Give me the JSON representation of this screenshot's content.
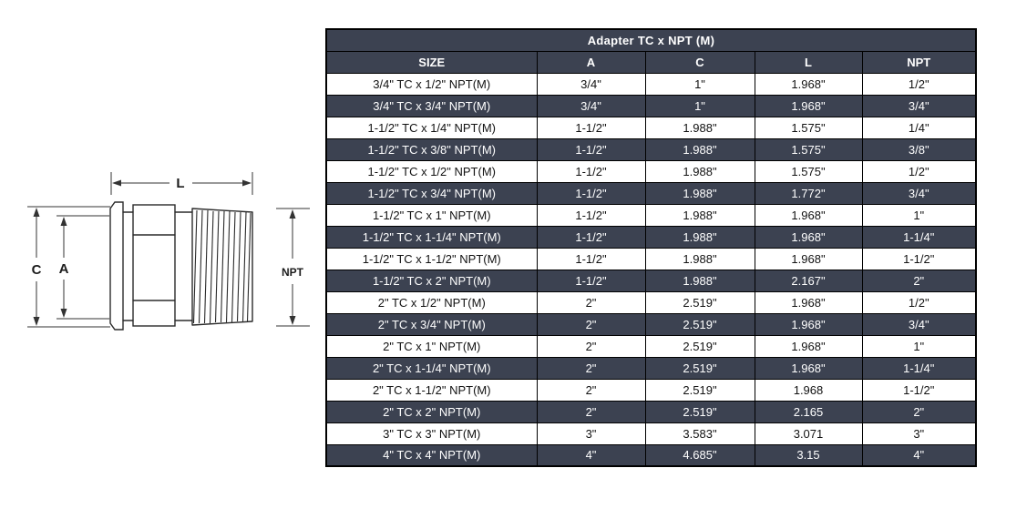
{
  "colors": {
    "header_bg": "#3c4251",
    "alt_row_bg": "#3c4251",
    "row_bg": "#ffffff",
    "border": "#000000",
    "header_text": "#ffffff",
    "body_text": "#121212",
    "drawing_line": "#2b2b2b"
  },
  "diagram": {
    "labels": {
      "length": "L",
      "clamp_diameter": "C",
      "tube_diameter": "A",
      "thread": "NPT"
    }
  },
  "table": {
    "title": "Adapter TC x NPT (M)",
    "columns": [
      "SIZE",
      "A",
      "C",
      "L",
      "NPT"
    ],
    "rows": [
      [
        "3/4\" TC x 1/2\" NPT(M)",
        "3/4\"",
        "1\"",
        "1.968\"",
        "1/2\""
      ],
      [
        "3/4\" TC x 3/4\" NPT(M)",
        "3/4\"",
        "1\"",
        "1.968\"",
        "3/4\""
      ],
      [
        "1-1/2\" TC x 1/4\" NPT(M)",
        "1-1/2\"",
        "1.988\"",
        "1.575\"",
        "1/4\""
      ],
      [
        "1-1/2\" TC x 3/8\" NPT(M)",
        "1-1/2\"",
        "1.988\"",
        "1.575\"",
        "3/8\""
      ],
      [
        "1-1/2\" TC x 1/2\" NPT(M)",
        "1-1/2\"",
        "1.988\"",
        "1.575\"",
        "1/2\""
      ],
      [
        "1-1/2\" TC x 3/4\" NPT(M)",
        "1-1/2\"",
        "1.988\"",
        "1.772\"",
        "3/4\""
      ],
      [
        "1-1/2\" TC x 1\" NPT(M)",
        "1-1/2\"",
        "1.988\"",
        "1.968\"",
        "1\""
      ],
      [
        "1-1/2\" TC x 1-1/4\" NPT(M)",
        "1-1/2\"",
        "1.988\"",
        "1.968\"",
        "1-1/4\""
      ],
      [
        "1-1/2\" TC x 1-1/2\" NPT(M)",
        "1-1/2\"",
        "1.988\"",
        "1.968\"",
        "1-1/2\""
      ],
      [
        "1-1/2\" TC x 2\" NPT(M)",
        "1-1/2\"",
        "1.988\"",
        "2.167\"",
        "2\""
      ],
      [
        "2\" TC x 1/2\" NPT(M)",
        "2\"",
        "2.519\"",
        "1.968\"",
        "1/2\""
      ],
      [
        "2\" TC x 3/4\" NPT(M)",
        "2\"",
        "2.519\"",
        "1.968\"",
        "3/4\""
      ],
      [
        "2\" TC x 1\" NPT(M)",
        "2\"",
        "2.519\"",
        "1.968\"",
        "1\""
      ],
      [
        "2\" TC x 1-1/4\" NPT(M)",
        "2\"",
        "2.519\"",
        "1.968\"",
        "1-1/4\""
      ],
      [
        "2\" TC x 1-1/2\" NPT(M)",
        "2\"",
        "2.519\"",
        "1.968",
        "1-1/2\""
      ],
      [
        "2\" TC x 2\" NPT(M)",
        "2\"",
        "2.519\"",
        "2.165",
        "2\""
      ],
      [
        "3\" TC x 3\" NPT(M)",
        "3\"",
        "3.583\"",
        "3.071",
        "3\""
      ],
      [
        "4\" TC x 4\" NPT(M)",
        "4\"",
        "4.685\"",
        "3.15",
        "4\""
      ]
    ]
  }
}
